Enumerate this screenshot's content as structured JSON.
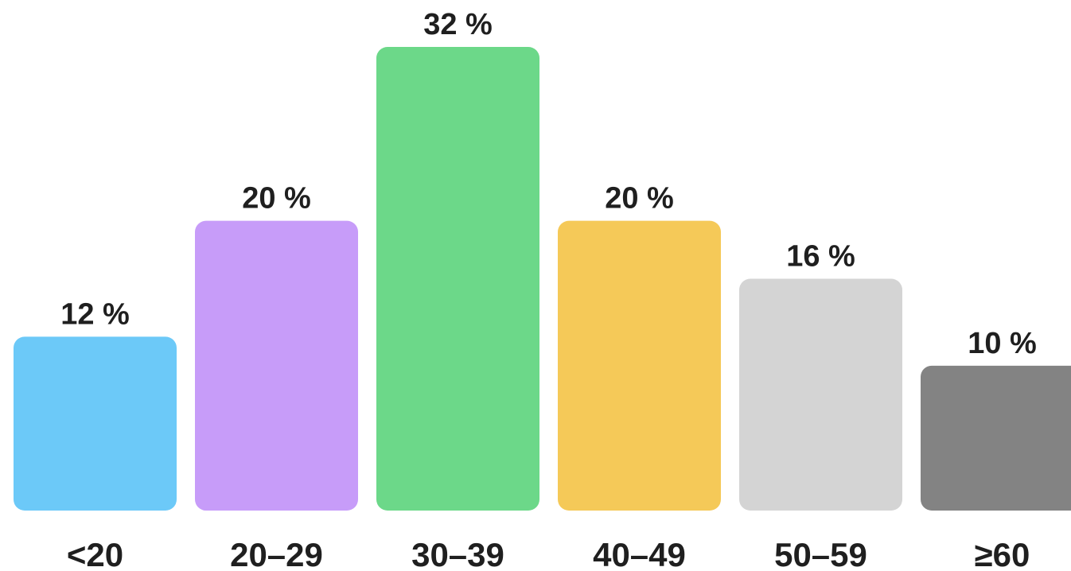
{
  "chart_data": {
    "type": "bar",
    "categories": [
      "<20",
      "20–29",
      "30–39",
      "40–49",
      "50–59",
      "≥60"
    ],
    "values": [
      12,
      20,
      32,
      20,
      16,
      10
    ],
    "value_labels": [
      "12 %",
      "20 %",
      "32 %",
      "20 %",
      "16 %",
      "10 %"
    ],
    "colors": [
      "#6cc9f8",
      "#c79cf9",
      "#6cd889",
      "#f5c958",
      "#d4d4d4",
      "#838383"
    ],
    "title": "",
    "xlabel": "",
    "ylabel": "",
    "ylim": [
      0,
      32
    ],
    "grid": false,
    "legend": "none"
  }
}
